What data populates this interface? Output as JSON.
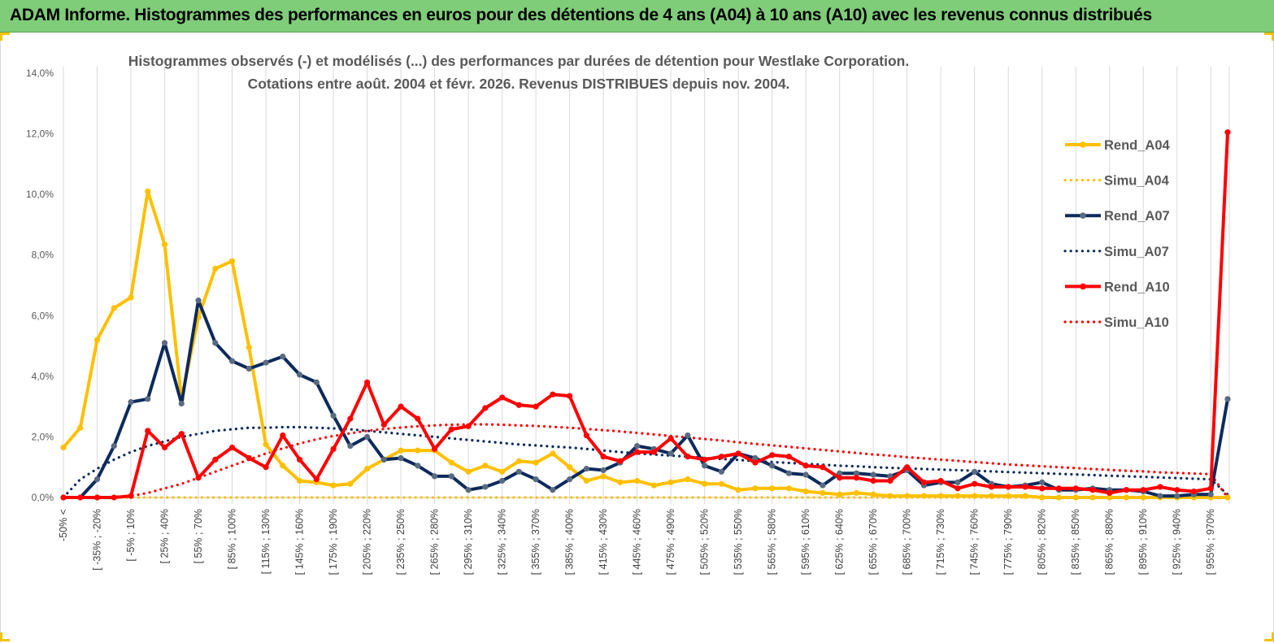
{
  "banner": {
    "title": "ADAM Informe. Histogrammes des performances en euros pour des détentions de 4 ans (A04) à 10 ans (A10) avec les revenus connus distribués"
  },
  "colors": {
    "banner_bg": "#7fcc79",
    "A04": "#ffc000",
    "A07": "#0e2a5c",
    "A10": "#ff0000",
    "grid": "#d9d9d9"
  },
  "chart_data": {
    "type": "line",
    "title_line1": "Histogrammes observés (-) et modélisés (...) des performances par durées de détention pour Westlake Corporation.",
    "title_line2": "Cotations entre août. 2004 et févr. 2026. Revenus DISTRIBUES depuis nov. 2004.",
    "ylim": [
      0,
      14
    ],
    "yticks": [
      "0,0%",
      "2,0%",
      "4,0%",
      "6,0%",
      "8,0%",
      "10,0%",
      "12,0%",
      "14,0%"
    ],
    "x_count": 70,
    "x_labels": [
      "-50% <",
      "[ -35% ; -20%",
      "[ -5% ; 10%",
      "[ 25% ; 40%",
      "[ 55% ; 70%",
      "[ 85% ; 100%",
      "[ 115% ; 130%",
      "[ 145% ; 160%",
      "[ 175% ; 190%",
      "[ 205% ; 220%",
      "[ 235% ; 250%",
      "[ 265% ; 280%",
      "[ 295% ; 310%",
      "[ 325% ; 340%",
      "[ 355% ; 370%",
      "[ 385% ; 400%",
      "[ 415% ; 430%",
      "[ 445% ; 460%",
      "[ 475% ; 490%",
      "[ 505% ; 520%",
      "[ 535% ; 550%",
      "[ 565% ; 580%",
      "[ 595% ; 610%",
      "[ 625% ; 640%",
      "[ 655% ; 670%",
      "[ 685% ; 700%",
      "[ 715% ; 730%",
      "[ 745% ; 760%",
      "[ 775% ; 790%",
      "[ 805% ; 820%",
      "[ 835% ; 850%",
      "[ 865% ; 880%",
      "[ 895% ; 910%",
      "[ 925% ; 940%",
      "[ 955% ; 970%"
    ],
    "x_label_indices": [
      0,
      2,
      4,
      6,
      8,
      10,
      12,
      14,
      16,
      18,
      20,
      22,
      24,
      26,
      28,
      30,
      32,
      34,
      36,
      38,
      40,
      42,
      44,
      46,
      48,
      50,
      52,
      54,
      56,
      58,
      60,
      62,
      64,
      66,
      68
    ],
    "legend": {
      "position": "right",
      "entries": [
        {
          "name": "Rend_A04",
          "series": "A04",
          "style": "solid"
        },
        {
          "name": "Simu_A04",
          "series": "A04",
          "style": "dotted"
        },
        {
          "name": "Rend_A07",
          "series": "A07",
          "style": "solid"
        },
        {
          "name": "Simu_A07",
          "series": "A07",
          "style": "dotted"
        },
        {
          "name": "Rend_A10",
          "series": "A10",
          "style": "solid"
        },
        {
          "name": "Simu_A10",
          "series": "A10",
          "style": "dotted"
        }
      ]
    },
    "series": [
      {
        "name": "Rend_A04",
        "color": "#ffc000",
        "style": "solid",
        "values": [
          1.65,
          2.3,
          5.2,
          6.25,
          6.6,
          10.1,
          8.35,
          3.25,
          5.95,
          7.55,
          7.8,
          4.95,
          1.75,
          1.05,
          0.55,
          0.5,
          0.4,
          0.45,
          0.95,
          1.25,
          1.55,
          1.55,
          1.55,
          1.15,
          0.85,
          1.05,
          0.85,
          1.2,
          1.15,
          1.45,
          1.0,
          0.55,
          0.7,
          0.5,
          0.55,
          0.4,
          0.5,
          0.6,
          0.45,
          0.45,
          0.25,
          0.3,
          0.3,
          0.3,
          0.2,
          0.15,
          0.1,
          0.15,
          0.1,
          0.05,
          0.05,
          0.05,
          0.05,
          0.05,
          0.05,
          0.05,
          0.05,
          0.05,
          0.0,
          0.0,
          0.0,
          0.0,
          0.0,
          0.0,
          0.0,
          0.0,
          0.0,
          0.0,
          0.0,
          0.0
        ]
      },
      {
        "name": "Simu_A04",
        "color": "#ffc000",
        "style": "dotted",
        "values": [
          0.0,
          0.0,
          0.0,
          0.0,
          0.0,
          0.0,
          0.0,
          0.0,
          0.0,
          0.0,
          0.0,
          0.0,
          0.0,
          0.0,
          0.0,
          0.0,
          0.0,
          0.0,
          0.0,
          0.0,
          0.0,
          0.0,
          0.0,
          0.0,
          0.0,
          0.0,
          0.0,
          0.0,
          0.0,
          0.0,
          0.0,
          0.0,
          0.0,
          0.0,
          0.0,
          0.0,
          0.0,
          0.0,
          0.0,
          0.0,
          0.0,
          0.0,
          0.0,
          0.0,
          0.0,
          0.0,
          0.0,
          0.0,
          0.0,
          0.0,
          0.0,
          0.0,
          0.0,
          0.0,
          0.0,
          0.0,
          0.0,
          0.0,
          0.0,
          0.0,
          0.0,
          0.0,
          0.0,
          0.0,
          0.0,
          0.0,
          0.0,
          0.0,
          0.0,
          0.0
        ]
      },
      {
        "name": "Rend_A07",
        "color": "#0e2a5c",
        "style": "solid",
        "values": [
          0.0,
          0.0,
          0.6,
          1.7,
          3.15,
          3.25,
          5.1,
          3.1,
          6.5,
          5.1,
          4.5,
          4.25,
          4.45,
          4.65,
          4.05,
          3.8,
          2.7,
          1.7,
          2.0,
          1.25,
          1.3,
          1.05,
          0.7,
          0.7,
          0.25,
          0.35,
          0.55,
          0.85,
          0.6,
          0.25,
          0.6,
          0.95,
          0.9,
          1.15,
          1.7,
          1.6,
          1.45,
          2.05,
          1.05,
          0.85,
          1.45,
          1.3,
          1.05,
          0.8,
          0.75,
          0.4,
          0.8,
          0.8,
          0.75,
          0.7,
          0.9,
          0.4,
          0.5,
          0.5,
          0.85,
          0.45,
          0.35,
          0.4,
          0.5,
          0.25,
          0.25,
          0.3,
          0.25,
          0.25,
          0.2,
          0.05,
          0.05,
          0.1,
          0.1,
          3.25
        ]
      },
      {
        "name": "Simu_A07",
        "color": "#0e2a5c",
        "style": "dotted",
        "values": [
          0.0,
          0.6,
          0.95,
          1.25,
          1.5,
          1.7,
          1.85,
          2.0,
          2.1,
          2.2,
          2.25,
          2.3,
          2.3,
          2.32,
          2.32,
          2.3,
          2.28,
          2.25,
          2.2,
          2.15,
          2.1,
          2.05,
          2.0,
          1.95,
          1.9,
          1.85,
          1.8,
          1.75,
          1.72,
          1.68,
          1.65,
          1.6,
          1.55,
          1.5,
          1.45,
          1.42,
          1.38,
          1.35,
          1.3,
          1.27,
          1.24,
          1.2,
          1.17,
          1.14,
          1.11,
          1.08,
          1.05,
          1.03,
          1.0,
          0.98,
          0.96,
          0.94,
          0.92,
          0.9,
          0.88,
          0.86,
          0.84,
          0.82,
          0.8,
          0.78,
          0.76,
          0.74,
          0.72,
          0.7,
          0.68,
          0.66,
          0.64,
          0.62,
          0.6,
          0.1
        ]
      },
      {
        "name": "Rend_A10",
        "color": "#ff0000",
        "style": "solid",
        "values": [
          0.0,
          0.0,
          0.0,
          0.0,
          0.05,
          2.2,
          1.65,
          2.1,
          0.65,
          1.25,
          1.65,
          1.3,
          1.0,
          2.05,
          1.25,
          0.6,
          1.6,
          2.6,
          3.8,
          2.4,
          3.0,
          2.6,
          1.6,
          2.25,
          2.35,
          2.95,
          3.3,
          3.05,
          3.0,
          3.4,
          3.35,
          2.05,
          1.35,
          1.2,
          1.5,
          1.5,
          1.95,
          1.35,
          1.25,
          1.35,
          1.45,
          1.15,
          1.4,
          1.35,
          1.05,
          1.0,
          0.65,
          0.65,
          0.55,
          0.55,
          1.0,
          0.5,
          0.55,
          0.3,
          0.45,
          0.35,
          0.35,
          0.35,
          0.3,
          0.3,
          0.3,
          0.25,
          0.15,
          0.25,
          0.25,
          0.35,
          0.25,
          0.2,
          0.3,
          12.05
        ]
      },
      {
        "name": "Simu_A10",
        "color": "#ff0000",
        "style": "dotted",
        "values": [
          0.0,
          0.0,
          0.0,
          0.0,
          0.05,
          0.15,
          0.3,
          0.45,
          0.65,
          0.85,
          1.05,
          1.25,
          1.45,
          1.62,
          1.78,
          1.92,
          2.03,
          2.12,
          2.2,
          2.26,
          2.31,
          2.35,
          2.38,
          2.4,
          2.41,
          2.41,
          2.4,
          2.38,
          2.36,
          2.33,
          2.3,
          2.26,
          2.22,
          2.18,
          2.13,
          2.08,
          2.03,
          1.98,
          1.93,
          1.88,
          1.82,
          1.77,
          1.72,
          1.67,
          1.62,
          1.57,
          1.52,
          1.47,
          1.42,
          1.38,
          1.33,
          1.29,
          1.25,
          1.21,
          1.17,
          1.13,
          1.09,
          1.06,
          1.03,
          1.0,
          0.97,
          0.94,
          0.91,
          0.88,
          0.86,
          0.83,
          0.81,
          0.79,
          0.77,
          0.0
        ]
      }
    ]
  }
}
